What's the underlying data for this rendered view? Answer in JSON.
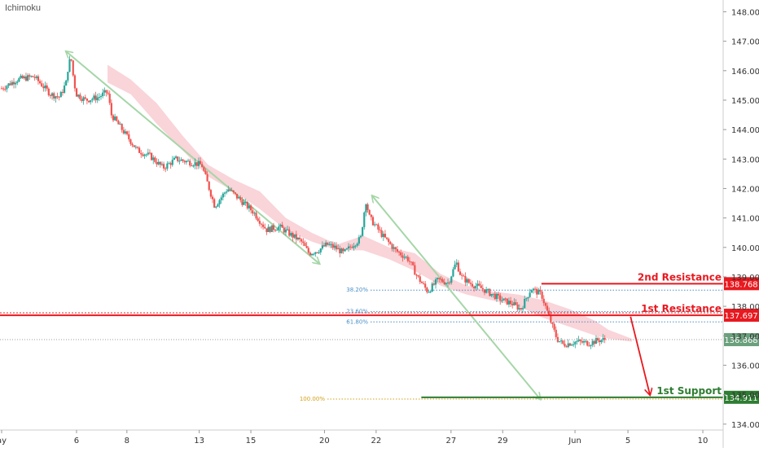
{
  "indicator_label": "Ichimoku",
  "colors": {
    "up": "#26a69a",
    "down": "#ef5350",
    "candle_body": "#4a4a4a",
    "cloud": "#f7c6cc",
    "resistance": "#e8191f",
    "support": "#2e7d32",
    "fib_blue": "#4a90c8",
    "fib_gold": "#d4a017",
    "arrow_green": "#a5d6a7",
    "current_price_bg": "#6aa07c",
    "grid": "#e6e6e6",
    "axis_text": "#333333"
  },
  "chart_data": {
    "type": "candlestick",
    "y_axis": {
      "range": [
        133.8,
        148.4
      ],
      "ticks": [
        "148.000",
        "147.000",
        "146.000",
        "145.000",
        "144.000",
        "143.000",
        "142.000",
        "141.000",
        "140.000",
        "139.000",
        "138.000",
        "137.000",
        "136.000",
        "135.000",
        "134.000"
      ]
    },
    "x_axis": {
      "ticks": [
        {
          "label": "ay",
          "bar": 0
        },
        {
          "label": "6",
          "bar": 58
        },
        {
          "label": "8",
          "bar": 97
        },
        {
          "label": "13",
          "bar": 153
        },
        {
          "label": "15",
          "bar": 193
        },
        {
          "label": "20",
          "bar": 250
        },
        {
          "label": "22",
          "bar": 290
        },
        {
          "label": "27",
          "bar": 348
        },
        {
          "label": "29",
          "bar": 388
        },
        {
          "label": "Jun",
          "bar": 444
        },
        {
          "label": "5",
          "bar": 485
        },
        {
          "label": "10",
          "bar": 543
        }
      ],
      "bar_count": 560
    },
    "price_path": [
      [
        0,
        145.4
      ],
      [
        12,
        145.7
      ],
      [
        25,
        145.8
      ],
      [
        38,
        145.2
      ],
      [
        45,
        145.1
      ],
      [
        50,
        145.6
      ],
      [
        52,
        146.3
      ],
      [
        54,
        146.35
      ],
      [
        56,
        145.6
      ],
      [
        58,
        145.2
      ],
      [
        65,
        145.0
      ],
      [
        75,
        145.1
      ],
      [
        82,
        145.3
      ],
      [
        85,
        144.5
      ],
      [
        95,
        143.9
      ],
      [
        105,
        143.3
      ],
      [
        115,
        143.1
      ],
      [
        125,
        142.7
      ],
      [
        135,
        143.0
      ],
      [
        145,
        142.9
      ],
      [
        155,
        142.8
      ],
      [
        165,
        141.4
      ],
      [
        175,
        142.0
      ],
      [
        185,
        141.6
      ],
      [
        195,
        141.2
      ],
      [
        205,
        140.6
      ],
      [
        215,
        140.7
      ],
      [
        225,
        140.4
      ],
      [
        232,
        140.2
      ],
      [
        238,
        139.8
      ],
      [
        245,
        139.9
      ],
      [
        252,
        140.1
      ],
      [
        258,
        140.0
      ],
      [
        265,
        139.8
      ],
      [
        272,
        140.1
      ],
      [
        278,
        140.3
      ],
      [
        282,
        141.6
      ],
      [
        285,
        141.0
      ],
      [
        295,
        140.4
      ],
      [
        305,
        139.9
      ],
      [
        315,
        139.6
      ],
      [
        322,
        139.0
      ],
      [
        330,
        138.5
      ],
      [
        338,
        138.9
      ],
      [
        346,
        138.8
      ],
      [
        352,
        139.5
      ],
      [
        356,
        139.0
      ],
      [
        362,
        138.8
      ],
      [
        372,
        138.6
      ],
      [
        380,
        138.4
      ],
      [
        388,
        138.2
      ],
      [
        395,
        138.1
      ],
      [
        402,
        137.9
      ],
      [
        410,
        138.6
      ],
      [
        418,
        138.4
      ],
      [
        425,
        137.5
      ],
      [
        430,
        136.9
      ],
      [
        435,
        136.7
      ],
      [
        445,
        136.8
      ],
      [
        455,
        136.75
      ],
      [
        462,
        136.85
      ],
      [
        468,
        136.87
      ]
    ],
    "cloud_top": [
      [
        82,
        146.2
      ],
      [
        100,
        145.7
      ],
      [
        120,
        144.9
      ],
      [
        140,
        143.8
      ],
      [
        160,
        142.8
      ],
      [
        180,
        142.3
      ],
      [
        200,
        141.9
      ],
      [
        220,
        141.0
      ],
      [
        240,
        140.5
      ],
      [
        260,
        140.1
      ],
      [
        280,
        140.4
      ],
      [
        300,
        140.0
      ],
      [
        320,
        139.8
      ],
      [
        340,
        139.1
      ],
      [
        360,
        138.7
      ],
      [
        380,
        138.5
      ],
      [
        400,
        138.4
      ],
      [
        420,
        138.2
      ],
      [
        440,
        137.9
      ],
      [
        460,
        137.5
      ],
      [
        470,
        137.2
      ],
      [
        488,
        136.9
      ]
    ],
    "cloud_bottom": [
      [
        82,
        145.6
      ],
      [
        100,
        145.2
      ],
      [
        120,
        144.2
      ],
      [
        140,
        143.3
      ],
      [
        160,
        142.4
      ],
      [
        180,
        141.9
      ],
      [
        200,
        141.3
      ],
      [
        220,
        140.6
      ],
      [
        240,
        140.2
      ],
      [
        260,
        139.9
      ],
      [
        280,
        139.9
      ],
      [
        300,
        139.6
      ],
      [
        320,
        139.2
      ],
      [
        340,
        138.7
      ],
      [
        360,
        138.4
      ],
      [
        380,
        138.2
      ],
      [
        400,
        138.0
      ],
      [
        420,
        137.6
      ],
      [
        440,
        137.3
      ],
      [
        460,
        137.0
      ],
      [
        470,
        136.9
      ],
      [
        488,
        136.8
      ]
    ],
    "levels": [
      {
        "name": "2nd Resistance",
        "price": 138.768,
        "price_label": "138.768",
        "color": "resistance"
      },
      {
        "name": "1st Resistance",
        "price": 137.697,
        "price_label": "137.697",
        "color": "resistance"
      },
      {
        "name": "1st Support",
        "price": 134.911,
        "price_label": "134.911",
        "color": "support"
      }
    ],
    "current_price": {
      "price": 136.868,
      "price_label": "136.868"
    },
    "fibonacci": [
      {
        "label": "38.20%",
        "price": 138.55
      },
      {
        "label": "23.60%",
        "price": 137.82
      },
      {
        "label": "61.80%",
        "price": 137.47
      },
      {
        "label": "100.00%",
        "price": 134.85
      }
    ],
    "arrows": [
      {
        "from": [
          50,
          146.65
        ],
        "to": [
          246,
          139.45
        ],
        "color": "arrow_green",
        "head": "both"
      },
      {
        "from": [
          287,
          141.75
        ],
        "to": [
          417,
          134.85
        ],
        "color": "arrow_green",
        "head": "both"
      },
      {
        "from": [
          487,
          137.65
        ],
        "to": [
          502,
          135.0
        ],
        "color": "resistance",
        "head": "end"
      }
    ]
  }
}
